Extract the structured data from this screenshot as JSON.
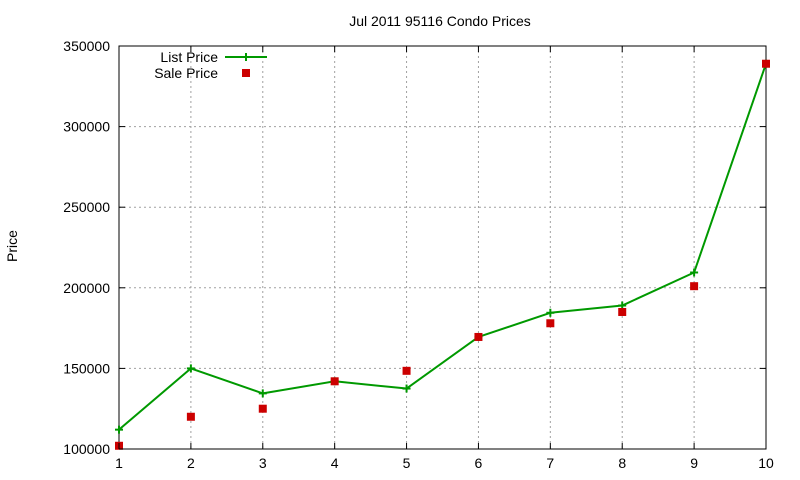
{
  "chart_data": {
    "type": "line",
    "title": "Jul 2011 95116 Condo Prices",
    "xlabel": "",
    "ylabel": "Price",
    "x": [
      1,
      2,
      3,
      4,
      5,
      6,
      7,
      8,
      9,
      10
    ],
    "xlim": [
      1,
      10
    ],
    "ylim": [
      100000,
      350000
    ],
    "xticks": [
      1,
      2,
      3,
      4,
      5,
      6,
      7,
      8,
      9,
      10
    ],
    "yticks": [
      100000,
      150000,
      200000,
      250000,
      300000,
      350000
    ],
    "grid": true,
    "legend_position": "top-left",
    "series": [
      {
        "name": "List Price",
        "style": "line-plus",
        "color": "#009900",
        "values": [
          112000,
          150000,
          134500,
          142000,
          137500,
          169500,
          184500,
          189000,
          209500,
          339000
        ]
      },
      {
        "name": "Sale Price",
        "style": "square-points",
        "color": "#cc0000",
        "values": [
          102000,
          120000,
          125000,
          142000,
          148500,
          169500,
          178000,
          185000,
          201000,
          339000
        ]
      }
    ]
  }
}
